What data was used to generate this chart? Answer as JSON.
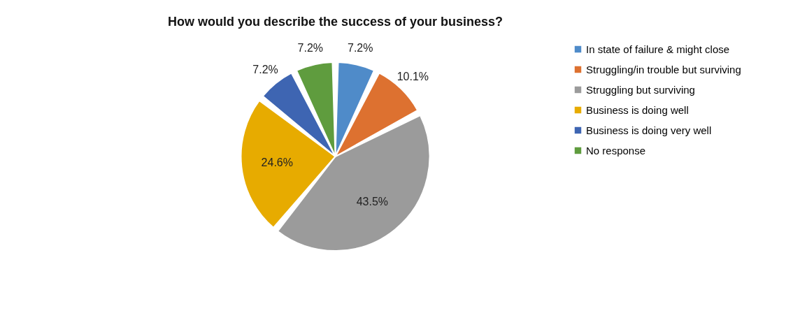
{
  "chart_data": {
    "type": "pie",
    "title": "How would you describe the success of your business?",
    "categories": [
      "In state of failure & might close",
      "Struggling/in trouble but surviving",
      "Struggling but surviving",
      "Business is doing well",
      "Business is doing very well",
      "No response"
    ],
    "values": [
      7.2,
      10.1,
      43.5,
      24.6,
      7.2,
      7.2
    ],
    "colors": [
      "#4f8bc9",
      "#dd7130",
      "#9b9b9b",
      "#e7ab00",
      "#3e65b2",
      "#5f9c3e"
    ],
    "value_labels": [
      "7.2%",
      "10.1%",
      "43.5%",
      "24.6%",
      "7.2%",
      "7.2%"
    ],
    "legend": "right"
  }
}
